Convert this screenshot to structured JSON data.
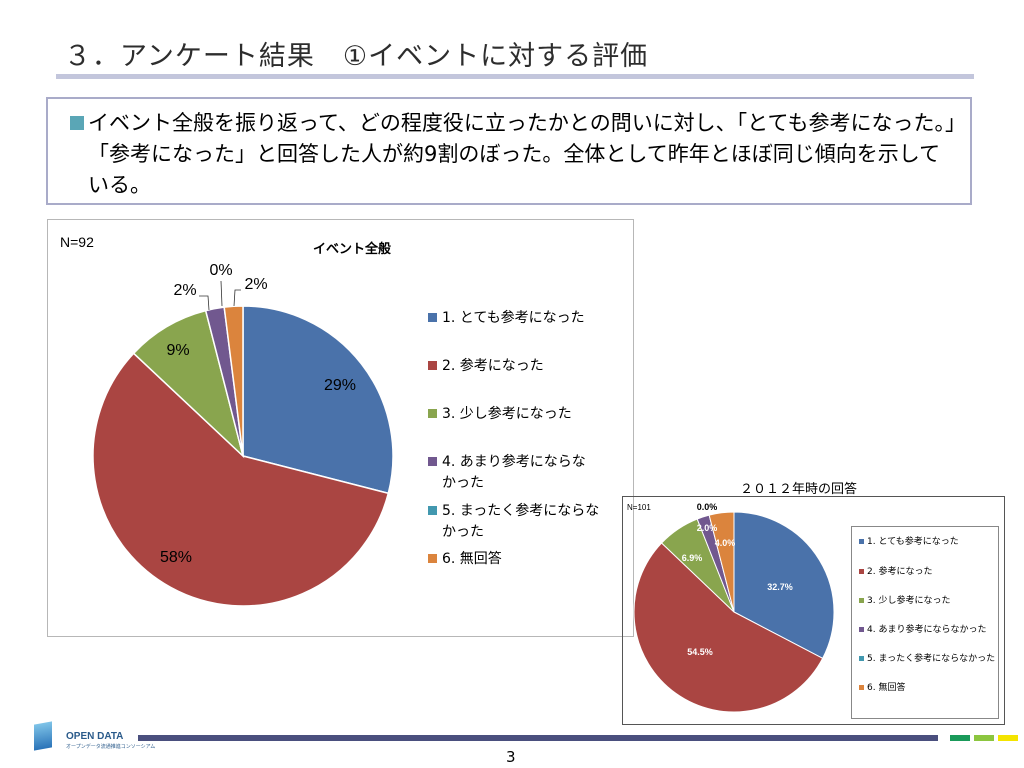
{
  "slide": {
    "title": "３．アンケート結果　①イベントに対する評価",
    "summary": "イベント全般を振り返って、どの程度役に立ったかとの問いに対し、「とても参考になった。」「参考になった」と回答した人が約9割のぼった。全体として昨年とほぼ同じ傾向を示している。",
    "page_number": "3",
    "logo_text": "OPEN DATA",
    "logo_subtext": "オープンデータ流通推進コンソーシアム",
    "colors": {
      "title_rule": "#c3c6dc",
      "footer": "#4a4f7e",
      "square_1": "#1a9a5a",
      "square_2": "#8cc63f",
      "square_3": "#f4e400"
    }
  },
  "chart_data": [
    {
      "type": "pie",
      "title": "イベント全般",
      "note": "N=92",
      "categories": [
        "1. とても参考になった",
        "2. 参考になった",
        "3. 少し参考になった",
        "4. あまり参考にならなかった",
        "5. まったく参考にならなかった",
        "6. 無回答"
      ],
      "legend_lines": [
        [
          "1. とても参考になった"
        ],
        [
          "2. 参考になった"
        ],
        [
          "3. 少し参考になった"
        ],
        [
          "4. あまり参考にならな",
          "かった"
        ],
        [
          "5. まったく参考にならな",
          "かった"
        ],
        [
          "6. 無回答"
        ]
      ],
      "values": [
        29,
        58,
        9,
        2,
        0,
        2
      ],
      "labels": [
        "29%",
        "58%",
        "9%",
        "2%",
        "0%",
        "2%"
      ],
      "colors": [
        "#4a72aa",
        "#aa4542",
        "#89a54e",
        "#71588f",
        "#4298af",
        "#db843d"
      ],
      "legend_position": "right"
    },
    {
      "type": "pie",
      "title": "２０１２年時の回答",
      "note": "N=101",
      "categories": [
        "1. とても参考になった",
        "2. 参考になった",
        "3. 少し参考になった",
        "4. あまり参考にならなかった",
        "5. まったく参考にならなかった",
        "6. 無回答"
      ],
      "values": [
        32.7,
        54.5,
        6.9,
        2.0,
        0.0,
        4.0
      ],
      "labels": [
        "32.7%",
        "54.5%",
        "6.9%",
        "2.0%",
        "0.0%",
        "4.0%"
      ],
      "colors": [
        "#4a72aa",
        "#aa4542",
        "#89a54e",
        "#71588f",
        "#4298af",
        "#db843d"
      ],
      "legend_position": "right"
    }
  ]
}
